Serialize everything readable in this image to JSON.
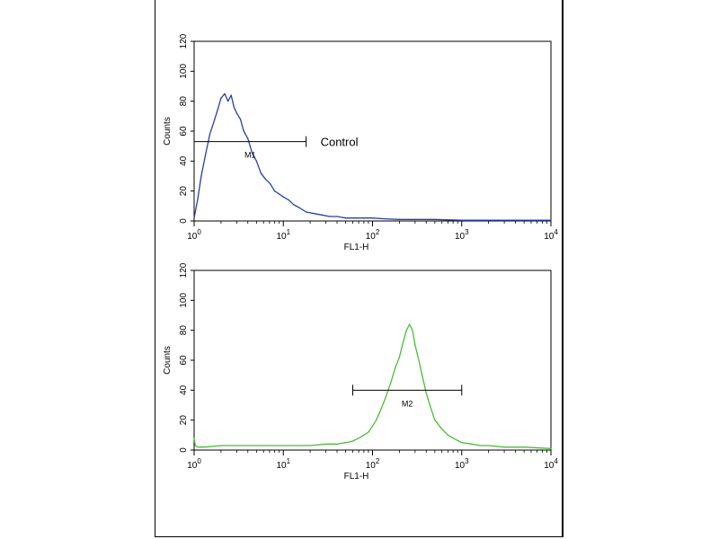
{
  "chart_data": [
    {
      "type": "line",
      "xlabel": "FL1-H",
      "ylabel": "Counts",
      "xscale": "log",
      "xlim": [
        1,
        10000
      ],
      "ylim": [
        0,
        120
      ],
      "xticks": [
        1,
        10,
        100,
        1000,
        10000
      ],
      "yticks": [
        0,
        20,
        40,
        60,
        80,
        100,
        120
      ],
      "color": "#2a3f9e",
      "annotation": "Control",
      "marker": {
        "label": "M1",
        "range": [
          1,
          18
        ],
        "level": 53
      },
      "series": [
        {
          "x": [
            1.0,
            1.1,
            1.2,
            1.35,
            1.5,
            1.7,
            1.85,
            2.0,
            2.2,
            2.4,
            2.6,
            2.8,
            3.0,
            3.3,
            3.6,
            4.0,
            4.5,
            5.0,
            5.6,
            6.3,
            7.1,
            8.0,
            9.0,
            10.0,
            11.5,
            13.0,
            15.0,
            18.0,
            22.0,
            27.0,
            33.0,
            40.0,
            50.0,
            65.0,
            80.0,
            100.0,
            130.0,
            200.0,
            300.0,
            500.0,
            1000.0,
            2000.0,
            5000.0,
            10000.0
          ],
          "values": [
            2,
            15,
            30,
            45,
            58,
            68,
            75,
            82,
            85,
            80,
            84,
            76,
            72,
            68,
            60,
            55,
            45,
            40,
            32,
            28,
            25,
            20,
            18,
            16,
            14,
            11,
            9,
            6,
            5,
            4,
            3,
            3,
            2,
            2,
            2,
            2,
            1.5,
            1,
            1,
            1,
            0.5,
            0.5,
            0.5,
            0.5
          ]
        }
      ]
    },
    {
      "type": "line",
      "xlabel": "FL1-H",
      "ylabel": "Counts",
      "xscale": "log",
      "xlim": [
        1,
        10000
      ],
      "ylim": [
        0,
        120
      ],
      "xticks": [
        1,
        10,
        100,
        1000,
        10000
      ],
      "yticks": [
        0,
        20,
        40,
        60,
        80,
        100,
        120
      ],
      "color": "#4dbb3a",
      "marker": {
        "label": "M2",
        "range": [
          60,
          1000
        ],
        "level": 40
      },
      "series": [
        {
          "x": [
            1.0,
            1.03,
            1.1,
            1.3,
            2.0,
            3.0,
            5.0,
            8.0,
            10.0,
            15.0,
            20.0,
            30.0,
            40.0,
            50.0,
            60.0,
            70.0,
            80.0,
            90.0,
            100.0,
            110.0,
            120.0,
            140.0,
            160.0,
            180.0,
            200.0,
            220.0,
            240.0,
            260.0,
            280.0,
            300.0,
            330.0,
            360.0,
            400.0,
            450.0,
            500.0,
            600.0,
            700.0,
            800.0,
            1000.0,
            1300.0,
            1600.0,
            2000.0,
            3000.0,
            5000.0,
            10000.0
          ],
          "values": [
            8,
            3,
            2,
            2,
            3,
            3,
            3,
            3,
            3,
            3,
            3,
            4,
            4,
            5,
            6,
            8,
            10,
            12,
            16,
            20,
            25,
            35,
            45,
            55,
            62,
            72,
            80,
            84,
            80,
            70,
            60,
            50,
            38,
            28,
            20,
            14,
            10,
            8,
            5,
            4,
            3,
            3,
            2,
            2,
            1
          ]
        }
      ]
    }
  ]
}
